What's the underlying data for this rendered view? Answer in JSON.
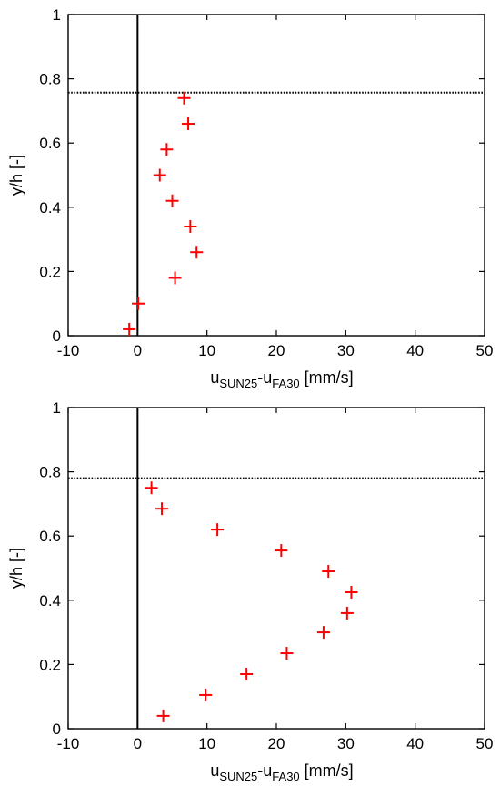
{
  "chart_data": [
    {
      "type": "scatter",
      "xlabel": {
        "prefix": "u",
        "sub1": "SUN25",
        "mid": "-u",
        "sub2": "FA30",
        "suffix": " [mm/s]"
      },
      "ylabel": "y/h [-]",
      "xlim": [
        -10,
        50
      ],
      "ylim": [
        0,
        1
      ],
      "x_ticks": [
        -10,
        0,
        10,
        20,
        30,
        40,
        50
      ],
      "y_ticks": [
        0,
        0.2,
        0.4,
        0.6,
        0.8,
        1
      ],
      "x_tick_labels": [
        "-10",
        "0",
        "10",
        "20",
        "30",
        "40",
        "50"
      ],
      "y_tick_labels": [
        "0",
        "0.2",
        "0.4",
        "0.6",
        "0.8",
        "1"
      ],
      "grid": false,
      "vline_x": 0,
      "hline_y": 0.757,
      "marker_color": "#ff0000",
      "series": [
        {
          "points": [
            {
              "x": 6.7,
              "y": 0.74
            },
            {
              "x": 7.3,
              "y": 0.66
            },
            {
              "x": 4.2,
              "y": 0.58
            },
            {
              "x": 3.2,
              "y": 0.5
            },
            {
              "x": 5.0,
              "y": 0.42
            },
            {
              "x": 7.6,
              "y": 0.34
            },
            {
              "x": 8.5,
              "y": 0.26
            },
            {
              "x": 5.4,
              "y": 0.18
            },
            {
              "x": 0.1,
              "y": 0.1
            },
            {
              "x": -1.2,
              "y": 0.02
            }
          ]
        }
      ]
    },
    {
      "type": "scatter",
      "xlabel": {
        "prefix": "u",
        "sub1": "SUN25",
        "mid": "-u",
        "sub2": "FA30",
        "suffix": " [mm/s]"
      },
      "ylabel": "y/h [-]",
      "xlim": [
        -10,
        50
      ],
      "ylim": [
        0,
        1
      ],
      "x_ticks": [
        -10,
        0,
        10,
        20,
        30,
        40,
        50
      ],
      "y_ticks": [
        0,
        0.2,
        0.4,
        0.6,
        0.8,
        1
      ],
      "x_tick_labels": [
        "-10",
        "0",
        "10",
        "20",
        "30",
        "40",
        "50"
      ],
      "y_tick_labels": [
        "0",
        "0.2",
        "0.4",
        "0.6",
        "0.8",
        "1"
      ],
      "grid": false,
      "vline_x": 0,
      "hline_y": 0.78,
      "marker_color": "#ff0000",
      "series": [
        {
          "points": [
            {
              "x": 2.0,
              "y": 0.75
            },
            {
              "x": 3.5,
              "y": 0.685
            },
            {
              "x": 11.5,
              "y": 0.62
            },
            {
              "x": 20.7,
              "y": 0.555
            },
            {
              "x": 27.5,
              "y": 0.49
            },
            {
              "x": 30.8,
              "y": 0.425
            },
            {
              "x": 30.2,
              "y": 0.36
            },
            {
              "x": 26.8,
              "y": 0.3
            },
            {
              "x": 21.5,
              "y": 0.235
            },
            {
              "x": 15.7,
              "y": 0.17
            },
            {
              "x": 9.8,
              "y": 0.105
            },
            {
              "x": 3.7,
              "y": 0.04
            }
          ]
        }
      ]
    }
  ]
}
